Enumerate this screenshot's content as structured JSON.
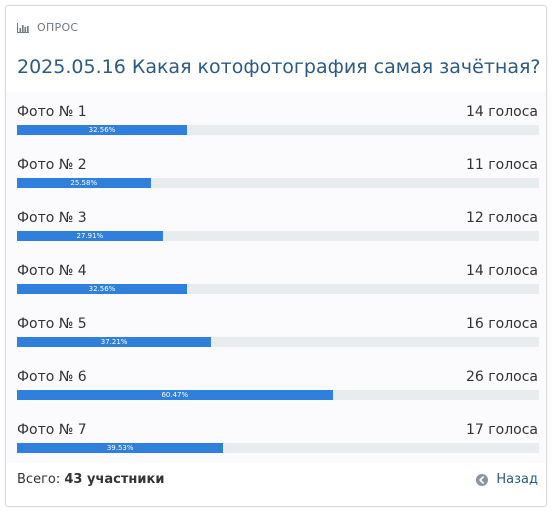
{
  "poll": {
    "header_label": "ОПРОС",
    "title": "2025.05.16 Какая котофотография самая зачётная?",
    "options": [
      {
        "label": "Фото № 1",
        "votes_text": "14 голоса",
        "percent": 32.56,
        "percent_text": "32.56%"
      },
      {
        "label": "Фото № 2",
        "votes_text": "11 голоса",
        "percent": 25.58,
        "percent_text": "25.58%"
      },
      {
        "label": "Фото № 3",
        "votes_text": "12 голоса",
        "percent": 27.91,
        "percent_text": "27.91%"
      },
      {
        "label": "Фото № 4",
        "votes_text": "14 голоса",
        "percent": 32.56,
        "percent_text": "32.56%"
      },
      {
        "label": "Фото № 5",
        "votes_text": "16 голоса",
        "percent": 37.21,
        "percent_text": "37.21%"
      },
      {
        "label": "Фото № 6",
        "votes_text": "26 голоса",
        "percent": 60.47,
        "percent_text": "60.47%"
      },
      {
        "label": "Фото № 7",
        "votes_text": "17 голоса",
        "percent": 39.53,
        "percent_text": "39.53%"
      }
    ],
    "total_label": "Всего:",
    "total_value": "43 участники",
    "back_label": "Назад"
  },
  "icons": {
    "header": "bar-chart-icon",
    "back": "arrow-left-circle-icon"
  },
  "colors": {
    "accent": "#2f7fdd",
    "title": "#2a5b86",
    "track": "#e9ecef"
  }
}
